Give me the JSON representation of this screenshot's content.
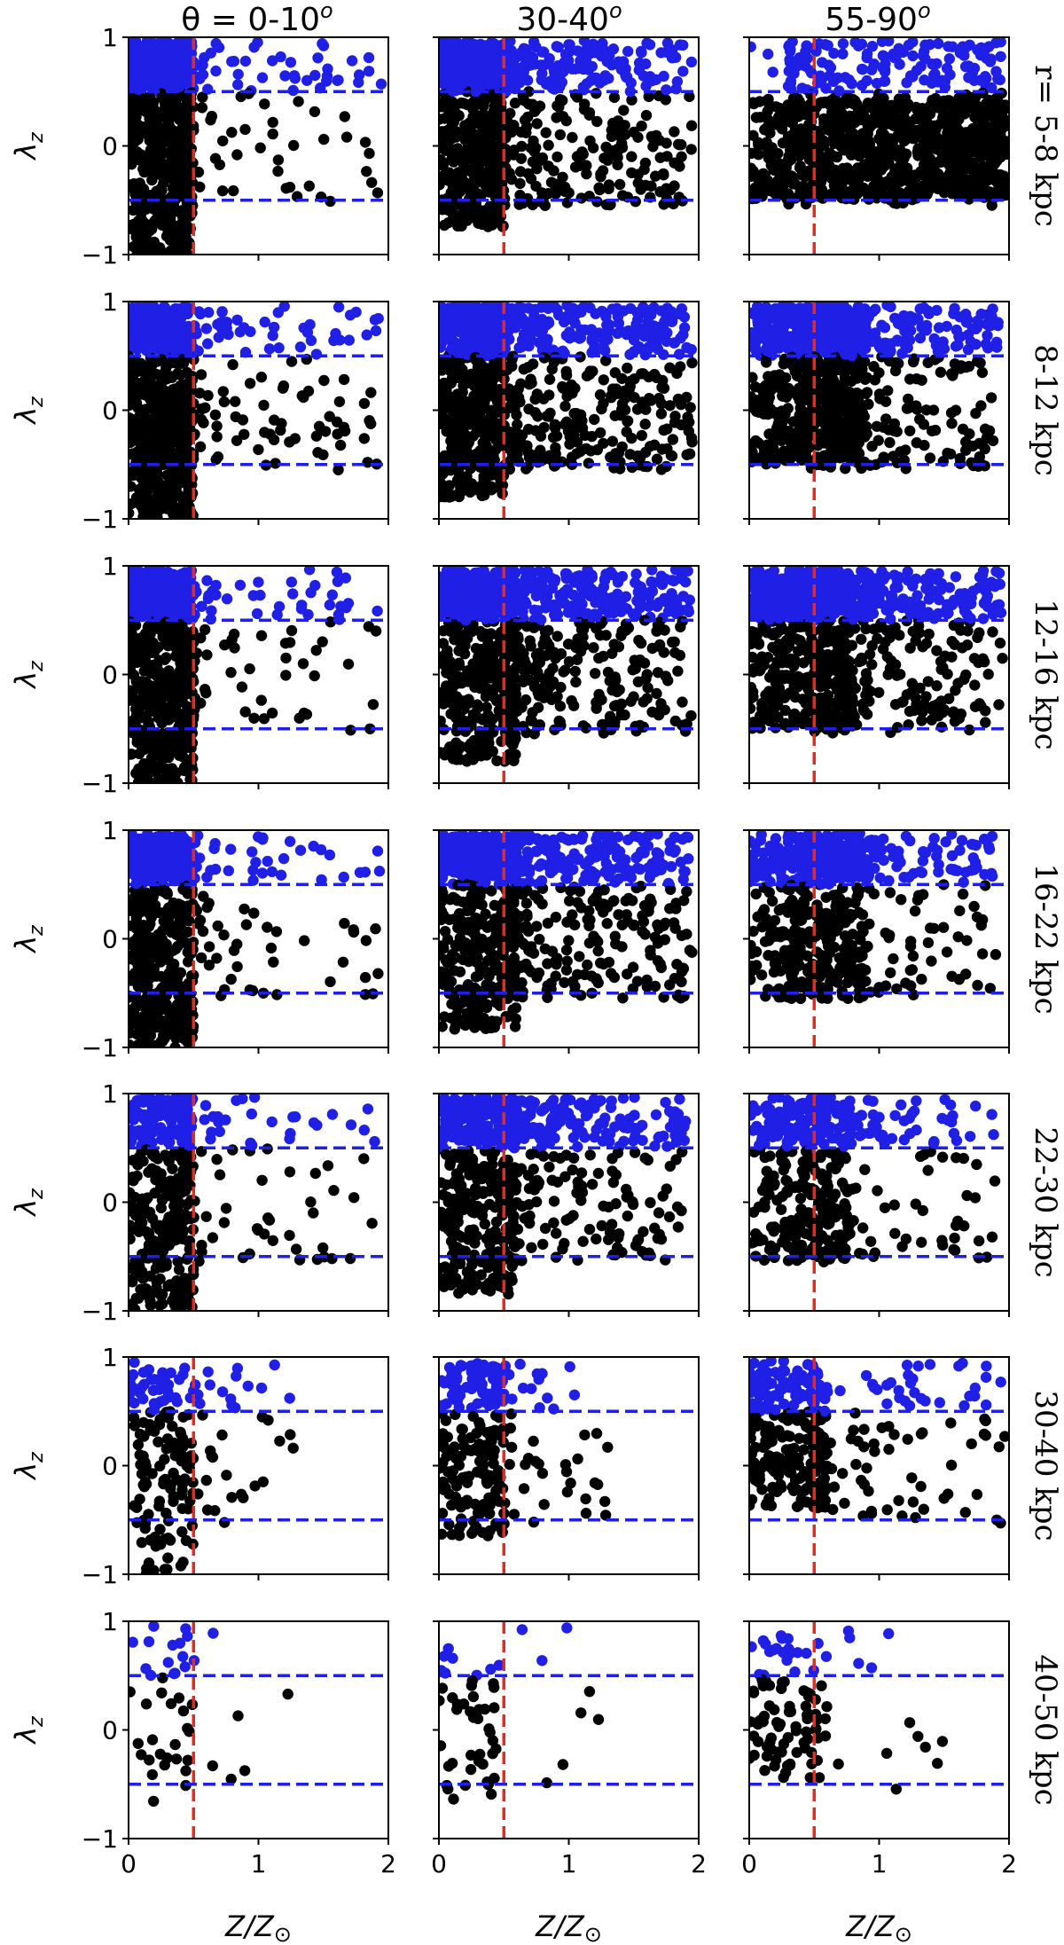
{
  "figure": {
    "column_titles": [
      "θ = 0-10",
      "30-40",
      "55-90"
    ],
    "column_title_superscript": "o",
    "row_labels": [
      "r= 5-8 kpc",
      "8-12 kpc",
      "12-16 kpc",
      "16-22 kpc",
      "22-30 kpc",
      "30-40 kpc",
      "40-50 kpc"
    ],
    "ylabel": "λ",
    "ylabel_sub": "z",
    "xlabel": "Z/Z",
    "xlabel_sub": "⊙",
    "xticks": [
      "0",
      "1",
      "2"
    ],
    "yticks": [
      "1",
      "0",
      "−1"
    ],
    "colors": {
      "low_lambda": "#000000",
      "high_lambda": "#1f1fe6",
      "threshold_h": "#1f1fe6",
      "threshold_v": "#e62b1e"
    }
  },
  "chart_data": {
    "type": "scatter",
    "layout": "grid 7 rows x 3 columns",
    "xlim": [
      0,
      2
    ],
    "ylim": [
      -1,
      1
    ],
    "x_quantity": "Z/Z⊙",
    "y_quantity": "λz",
    "reference_lines": {
      "horizontal": [
        0.5,
        -0.5
      ],
      "vertical": [
        0.5
      ]
    },
    "classification": "points with λz > 0.5 drawn in blue, others in black",
    "panels": [
      {
        "row": 0,
        "col": 0,
        "r_bin": "5-8 kpc",
        "theta_bin": "0-10",
        "n_points": 700,
        "dense_x_max": 0.5,
        "dense_y_range": [
          -1,
          1
        ],
        "sparse_fraction": 0.12,
        "sparse_x_range": [
          0.5,
          1.95
        ],
        "blue_fraction": 0.2
      },
      {
        "row": 0,
        "col": 1,
        "r_bin": "5-8 kpc",
        "theta_bin": "30-40",
        "n_points": 900,
        "dense_x_max": 0.5,
        "dense_y_range": [
          -0.75,
          0.95
        ],
        "sparse_fraction": 0.4,
        "sparse_x_range": [
          0.5,
          1.95
        ],
        "blue_fraction": 0.18
      },
      {
        "row": 0,
        "col": 2,
        "r_bin": "5-8 kpc",
        "theta_bin": "55-90",
        "n_points": 1100,
        "dense_x_max": 2.0,
        "dense_y_range": [
          -0.5,
          0.45
        ],
        "sparse_fraction": 0.25,
        "sparse_x_range": [
          0.3,
          1.95
        ],
        "blue_fraction": 0.05
      },
      {
        "row": 1,
        "col": 0,
        "r_bin": "8-12 kpc",
        "theta_bin": "0-10",
        "n_points": 800,
        "dense_x_max": 0.5,
        "dense_y_range": [
          -1,
          0.95
        ],
        "sparse_fraction": 0.15,
        "sparse_x_range": [
          0.5,
          1.95
        ],
        "blue_fraction": 0.15
      },
      {
        "row": 1,
        "col": 1,
        "r_bin": "8-12 kpc",
        "theta_bin": "30-40",
        "n_points": 1000,
        "dense_x_max": 0.5,
        "dense_y_range": [
          -0.8,
          0.95
        ],
        "sparse_fraction": 0.45,
        "sparse_x_range": [
          0.5,
          1.95
        ],
        "blue_fraction": 0.2
      },
      {
        "row": 1,
        "col": 2,
        "r_bin": "8-12 kpc",
        "theta_bin": "55-90",
        "n_points": 1000,
        "dense_x_max": 0.9,
        "dense_y_range": [
          -0.5,
          0.9
        ],
        "sparse_fraction": 0.4,
        "sparse_x_range": [
          0.4,
          1.95
        ],
        "blue_fraction": 0.3
      },
      {
        "row": 2,
        "col": 0,
        "r_bin": "12-16 kpc",
        "theta_bin": "0-10",
        "n_points": 700,
        "dense_x_max": 0.5,
        "dense_y_range": [
          -1,
          0.95
        ],
        "sparse_fraction": 0.12,
        "sparse_x_range": [
          0.5,
          1.95
        ],
        "blue_fraction": 0.2
      },
      {
        "row": 2,
        "col": 1,
        "r_bin": "12-16 kpc",
        "theta_bin": "30-40",
        "n_points": 1000,
        "dense_x_max": 0.6,
        "dense_y_range": [
          -0.8,
          0.95
        ],
        "sparse_fraction": 0.45,
        "sparse_x_range": [
          0.5,
          1.95
        ],
        "blue_fraction": 0.25
      },
      {
        "row": 2,
        "col": 2,
        "r_bin": "12-16 kpc",
        "theta_bin": "55-90",
        "n_points": 900,
        "dense_x_max": 0.8,
        "dense_y_range": [
          -0.5,
          0.9
        ],
        "sparse_fraction": 0.4,
        "sparse_x_range": [
          0.5,
          1.95
        ],
        "blue_fraction": 0.35
      },
      {
        "row": 3,
        "col": 0,
        "r_bin": "16-22 kpc",
        "theta_bin": "0-10",
        "n_points": 650,
        "dense_x_max": 0.5,
        "dense_y_range": [
          -1,
          0.95
        ],
        "sparse_fraction": 0.12,
        "sparse_x_range": [
          0.5,
          1.95
        ],
        "blue_fraction": 0.2
      },
      {
        "row": 3,
        "col": 1,
        "r_bin": "16-22 kpc",
        "theta_bin": "30-40",
        "n_points": 900,
        "dense_x_max": 0.6,
        "dense_y_range": [
          -0.85,
          0.95
        ],
        "sparse_fraction": 0.45,
        "sparse_x_range": [
          0.5,
          1.95
        ],
        "blue_fraction": 0.3
      },
      {
        "row": 3,
        "col": 2,
        "r_bin": "16-22 kpc",
        "theta_bin": "55-90",
        "n_points": 650,
        "dense_x_max": 0.9,
        "dense_y_range": [
          -0.55,
          0.85
        ],
        "sparse_fraction": 0.4,
        "sparse_x_range": [
          0.3,
          1.9
        ],
        "blue_fraction": 0.3
      },
      {
        "row": 4,
        "col": 0,
        "r_bin": "22-30 kpc",
        "theta_bin": "0-10",
        "n_points": 450,
        "dense_x_max": 0.5,
        "dense_y_range": [
          -1,
          0.95
        ],
        "sparse_fraction": 0.15,
        "sparse_x_range": [
          0.5,
          1.9
        ],
        "blue_fraction": 0.2
      },
      {
        "row": 4,
        "col": 1,
        "r_bin": "22-30 kpc",
        "theta_bin": "30-40",
        "n_points": 700,
        "dense_x_max": 0.6,
        "dense_y_range": [
          -0.85,
          0.95
        ],
        "sparse_fraction": 0.4,
        "sparse_x_range": [
          0.5,
          1.9
        ],
        "blue_fraction": 0.3
      },
      {
        "row": 4,
        "col": 2,
        "r_bin": "22-30 kpc",
        "theta_bin": "55-90",
        "n_points": 450,
        "dense_x_max": 0.8,
        "dense_y_range": [
          -0.55,
          0.9
        ],
        "sparse_fraction": 0.35,
        "sparse_x_range": [
          0.4,
          1.9
        ],
        "blue_fraction": 0.25
      },
      {
        "row": 5,
        "col": 0,
        "r_bin": "30-40 kpc",
        "theta_bin": "0-10",
        "n_points": 180,
        "dense_x_max": 0.5,
        "dense_y_range": [
          -1,
          0.9
        ],
        "sparse_fraction": 0.2,
        "sparse_x_range": [
          0.5,
          1.3
        ],
        "blue_fraction": 0.1
      },
      {
        "row": 5,
        "col": 1,
        "r_bin": "30-40 kpc",
        "theta_bin": "30-40",
        "n_points": 240,
        "dense_x_max": 0.5,
        "dense_y_range": [
          -0.65,
          0.95
        ],
        "sparse_fraction": 0.2,
        "sparse_x_range": [
          0.5,
          1.3
        ],
        "blue_fraction": 0.12
      },
      {
        "row": 5,
        "col": 2,
        "r_bin": "30-40 kpc",
        "theta_bin": "55-90",
        "n_points": 350,
        "dense_x_max": 0.6,
        "dense_y_range": [
          -0.4,
          0.9
        ],
        "sparse_fraction": 0.3,
        "sparse_x_range": [
          0.5,
          2.0
        ],
        "blue_fraction": 0.12
      },
      {
        "row": 6,
        "col": 0,
        "r_bin": "40-50 kpc",
        "theta_bin": "0-10",
        "n_points": 45,
        "dense_x_max": 0.5,
        "dense_y_range": [
          -0.75,
          0.9
        ],
        "sparse_fraction": 0.15,
        "sparse_x_range": [
          0.5,
          1.25
        ],
        "blue_fraction": 0.06
      },
      {
        "row": 6,
        "col": 1,
        "r_bin": "40-50 kpc",
        "theta_bin": "30-40",
        "n_points": 55,
        "dense_x_max": 0.5,
        "dense_y_range": [
          -0.65,
          0.75
        ],
        "sparse_fraction": 0.15,
        "sparse_x_range": [
          0.5,
          1.3
        ],
        "blue_fraction": 0.04
      },
      {
        "row": 6,
        "col": 2,
        "r_bin": "40-50 kpc",
        "theta_bin": "55-90",
        "n_points": 110,
        "dense_x_max": 0.6,
        "dense_y_range": [
          -0.45,
          0.85
        ],
        "sparse_fraction": 0.15,
        "sparse_x_range": [
          0.5,
          1.5
        ],
        "blue_fraction": 0.08
      }
    ]
  }
}
